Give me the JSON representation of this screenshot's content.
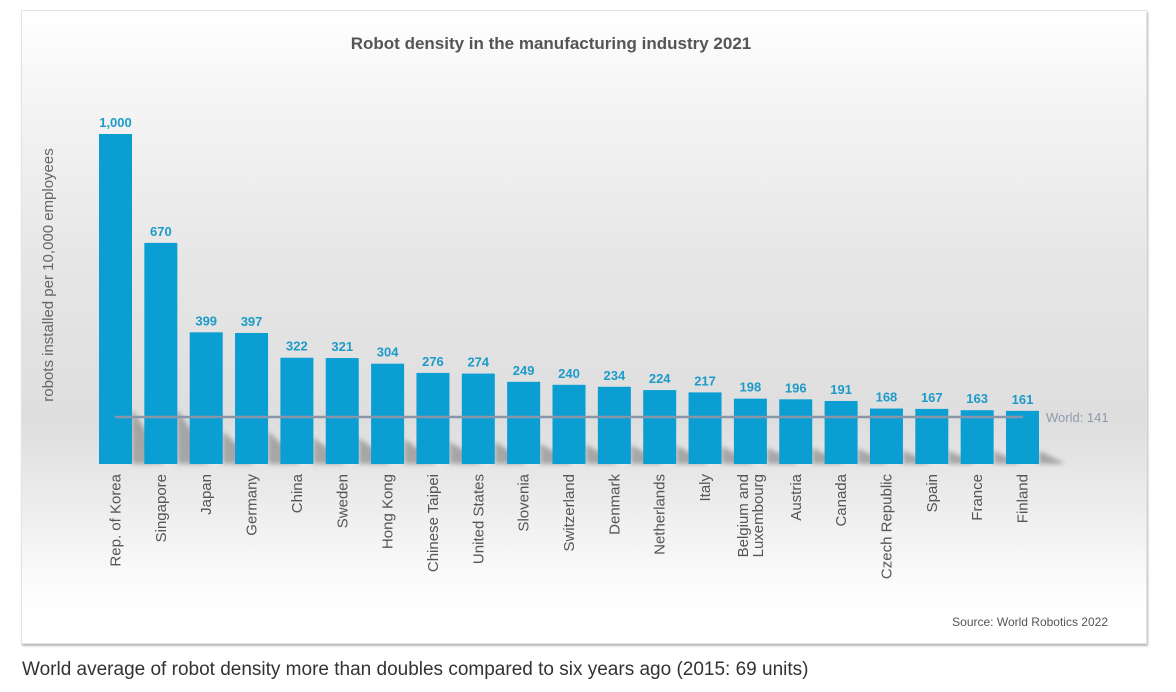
{
  "chart_data": {
    "type": "bar",
    "title": "Robot density in the manufacturing industry 2021",
    "xlabel": "",
    "ylabel": "robots installed per 10,000 employees",
    "ylim": [
      0,
      1000
    ],
    "grid": false,
    "categories": [
      [
        "Rep. of Korea"
      ],
      [
        "Singapore"
      ],
      [
        "Japan"
      ],
      [
        "Germany"
      ],
      [
        "China"
      ],
      [
        "Sweden"
      ],
      [
        "Hong Kong"
      ],
      [
        "Chinese Taipei"
      ],
      [
        "United States"
      ],
      [
        "Slovenia"
      ],
      [
        "Switzerland"
      ],
      [
        "Denmark"
      ],
      [
        "Netherlands"
      ],
      [
        "Italy"
      ],
      [
        "Belgium and",
        "Luxembourg"
      ],
      [
        "Austria"
      ],
      [
        "Canada"
      ],
      [
        "Czech Republic"
      ],
      [
        "Spain"
      ],
      [
        "France"
      ],
      [
        "Finland"
      ]
    ],
    "values": [
      1000,
      670,
      399,
      397,
      322,
      321,
      304,
      276,
      274,
      249,
      240,
      234,
      224,
      217,
      198,
      196,
      191,
      168,
      167,
      163,
      161
    ],
    "value_labels": [
      "1,000",
      "670",
      "399",
      "397",
      "322",
      "321",
      "304",
      "276",
      "274",
      "249",
      "240",
      "234",
      "224",
      "217",
      "198",
      "196",
      "191",
      "168",
      "167",
      "163",
      "161"
    ],
    "reference_line": {
      "label": "World: 141",
      "value": 141
    },
    "source": "Source: World Robotics 2022",
    "colors": {
      "bar": "#0a9ed2",
      "value_label": "#1c9bc9",
      "reference_line": "#8a96a8",
      "reference_label": "#8f9aaa"
    }
  },
  "caption": "World average of robot density more than doubles compared to six years ago (2015: 69 units)"
}
